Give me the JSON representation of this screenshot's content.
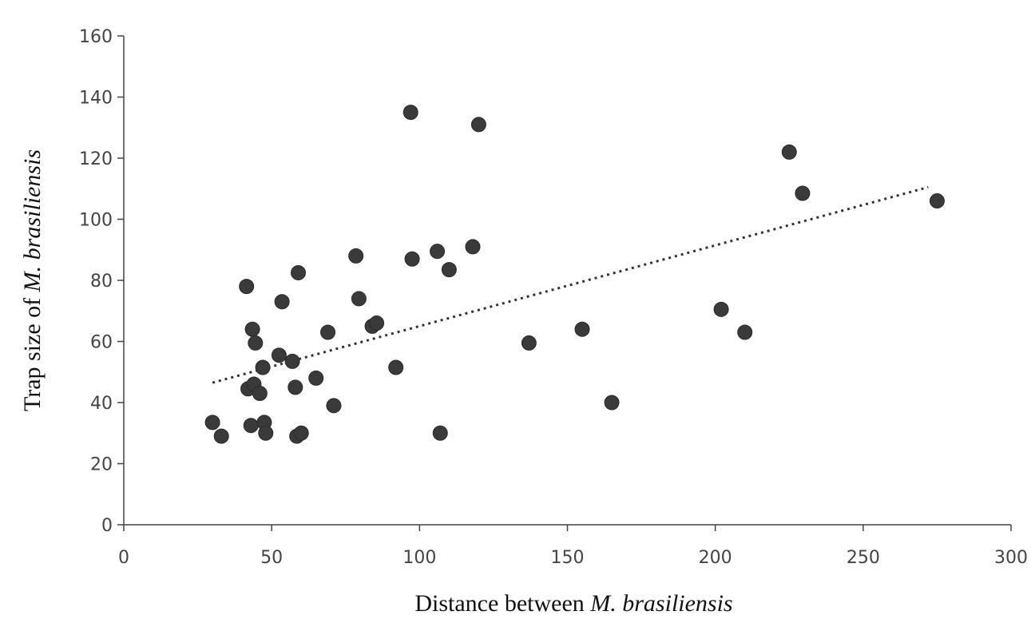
{
  "chart_data": {
    "type": "scatter",
    "xlabel_prefix": "Distance between ",
    "xlabel_italic": "M. brasiliensis",
    "ylabel_prefix": "Trap size of ",
    "ylabel_italic": "M. brasiliensis",
    "xlim": [
      0,
      300
    ],
    "ylim": [
      0,
      160
    ],
    "xticks": [
      0,
      50,
      100,
      150,
      200,
      250,
      300
    ],
    "yticks": [
      0,
      20,
      40,
      60,
      80,
      100,
      120,
      140,
      160
    ],
    "grid": false,
    "colors": {
      "point": "#3a3a3a",
      "trendline": "#333333"
    },
    "points": [
      [
        30,
        33.5
      ],
      [
        33,
        29
      ],
      [
        41.5,
        78
      ],
      [
        42,
        44.5
      ],
      [
        43,
        32.5
      ],
      [
        43.5,
        64
      ],
      [
        44,
        46
      ],
      [
        44.5,
        59.5
      ],
      [
        46,
        43
      ],
      [
        47,
        51.5
      ],
      [
        47.5,
        33.5
      ],
      [
        48,
        30
      ],
      [
        52.5,
        55.5
      ],
      [
        53.5,
        73
      ],
      [
        57,
        53.5
      ],
      [
        58,
        45
      ],
      [
        58.5,
        29
      ],
      [
        59,
        82.5
      ],
      [
        60,
        30
      ],
      [
        65,
        48
      ],
      [
        69,
        63
      ],
      [
        71,
        39
      ],
      [
        78.5,
        88
      ],
      [
        79.5,
        74
      ],
      [
        84,
        65
      ],
      [
        85.5,
        66
      ],
      [
        92,
        51.5
      ],
      [
        97,
        135
      ],
      [
        97.5,
        87
      ],
      [
        106,
        89.5
      ],
      [
        107,
        30
      ],
      [
        110,
        83.5
      ],
      [
        118,
        91
      ],
      [
        120,
        131
      ],
      [
        137,
        59.5
      ],
      [
        155,
        64
      ],
      [
        165,
        40
      ],
      [
        202,
        70.5
      ],
      [
        210,
        63
      ],
      [
        225,
        122
      ],
      [
        229.5,
        108.5
      ],
      [
        275,
        106
      ]
    ],
    "trendline": {
      "x": [
        30,
        272
      ],
      "y": [
        46.5,
        110.5
      ]
    }
  }
}
